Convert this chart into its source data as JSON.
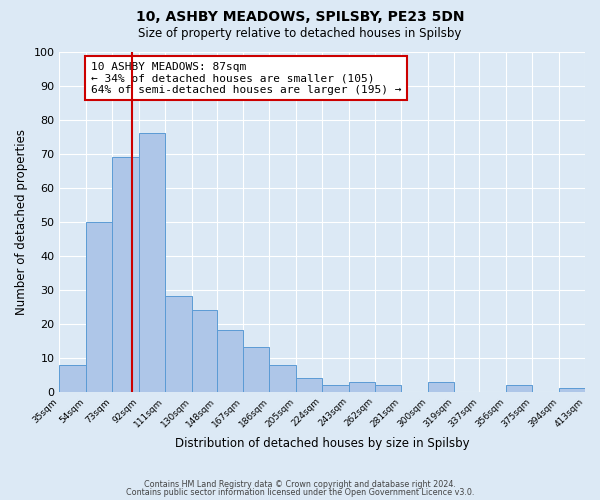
{
  "title": "10, ASHBY MEADOWS, SPILSBY, PE23 5DN",
  "subtitle": "Size of property relative to detached houses in Spilsby",
  "xlabel": "Distribution of detached houses by size in Spilsby",
  "ylabel": "Number of detached properties",
  "bin_edges": [
    35,
    54,
    73,
    92,
    111,
    130,
    148,
    167,
    186,
    205,
    224,
    243,
    262,
    281,
    300,
    319,
    337,
    356,
    375,
    394,
    413
  ],
  "bar_heights": [
    8,
    50,
    69,
    76,
    28,
    24,
    18,
    13,
    8,
    4,
    2,
    3,
    2,
    0,
    3,
    0,
    0,
    2,
    0,
    1
  ],
  "bar_color": "#aec6e8",
  "bar_edge_color": "#5b9bd5",
  "bg_color": "#dce9f5",
  "grid_color": "#ffffff",
  "vline_x": 87,
  "vline_color": "#cc0000",
  "annotation_box_text": "10 ASHBY MEADOWS: 87sqm\n← 34% of detached houses are smaller (105)\n64% of semi-detached houses are larger (195) →",
  "annotation_box_color": "#cc0000",
  "annotation_text_size": 8.0,
  "ylim": [
    0,
    100
  ],
  "tick_labels": [
    "35sqm",
    "54sqm",
    "73sqm",
    "92sqm",
    "111sqm",
    "130sqm",
    "148sqm",
    "167sqm",
    "186sqm",
    "205sqm",
    "224sqm",
    "243sqm",
    "262sqm",
    "281sqm",
    "300sqm",
    "319sqm",
    "337sqm",
    "356sqm",
    "375sqm",
    "394sqm",
    "413sqm"
  ],
  "yticks": [
    0,
    10,
    20,
    30,
    40,
    50,
    60,
    70,
    80,
    90,
    100
  ],
  "footer_line1": "Contains HM Land Registry data © Crown copyright and database right 2024.",
  "footer_line2": "Contains public sector information licensed under the Open Government Licence v3.0."
}
